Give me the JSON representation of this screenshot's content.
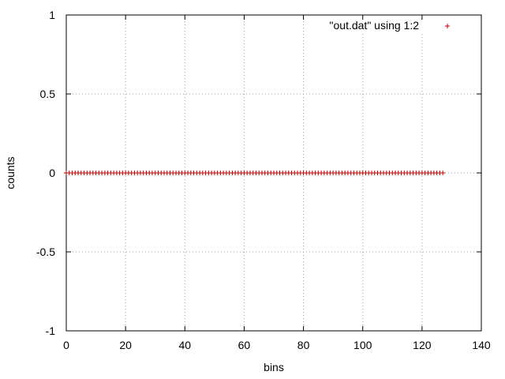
{
  "chart_data": {
    "type": "scatter",
    "title": "",
    "xlabel": "bins",
    "ylabel": "counts",
    "xlim": [
      0,
      140
    ],
    "ylim": [
      -1,
      1
    ],
    "x_ticks": [
      0,
      20,
      40,
      60,
      80,
      100,
      120,
      140
    ],
    "y_ticks": [
      -1,
      -0.5,
      0,
      0.5,
      1
    ],
    "x_tick_labels": [
      "0",
      "20",
      "40",
      "60",
      "80",
      "100",
      "120",
      "140"
    ],
    "y_tick_labels": [
      "-1",
      "-0.5",
      "0",
      "0.5",
      "1"
    ],
    "grid": true,
    "legend_position": "top-right",
    "marker": "+",
    "series": [
      {
        "name": "\"out.dat\" using 1:2",
        "color": "#c00000",
        "x_range": [
          0,
          127
        ],
        "y_constant": 0
      }
    ]
  }
}
